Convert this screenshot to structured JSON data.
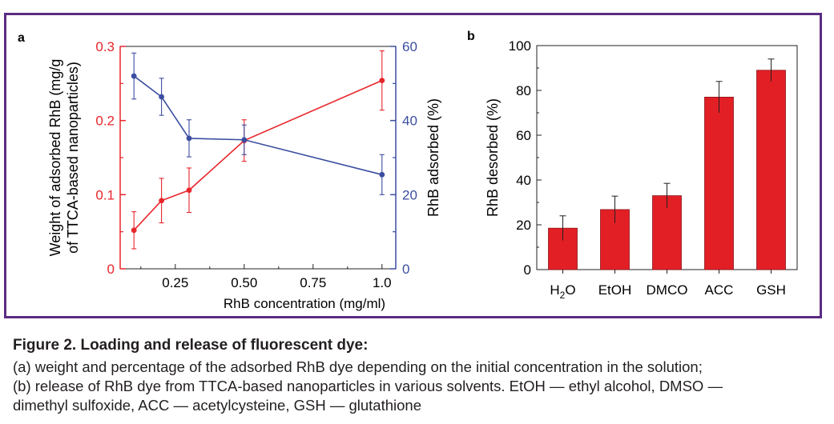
{
  "colors": {
    "frame": "#5b2c83",
    "red": "#e8262b",
    "blue": "#3b4ea1",
    "bar": "#e31f26",
    "text": "#231f20"
  },
  "caption": {
    "title": "Figure 2. Loading and release of fluorescent dye:",
    "line1": "(a) weight and percentage of the adsorbed RhB dye depending on the initial concentration in the solution;",
    "line2": "(b) release of RhB dye from TTCA-based nanoparticles in various solvents. EtOH — ethyl alcohol, DMSO —",
    "line3": "dimethyl sulfoxide, ACC — acetylcysteine, GSH — glutathione"
  },
  "chart_data": [
    {
      "panel": "a",
      "type": "line",
      "xlabel": "RhB concentration (mg/ml)",
      "ylabel_left_line1": "Weight of adsorbed RhB (mg/g",
      "ylabel_left_line2": "of TTCA-based nanoparticles)",
      "ylabel_right": "RhB adsorbed (%)",
      "xlim": [
        0.05,
        1.05
      ],
      "xticks": [
        "0.25",
        "0.50",
        "0.75",
        "1.0"
      ],
      "ylim_left": [
        0,
        0.3
      ],
      "yticks_left": [
        "0",
        "0.1",
        "0.2",
        "0.3"
      ],
      "ylim_right": [
        0,
        60
      ],
      "yticks_right": [
        "0",
        "20",
        "40",
        "60"
      ],
      "series": [
        {
          "axis": "left",
          "color": "#e8262b",
          "x": [
            0.1,
            0.2,
            0.3,
            0.5,
            1.0
          ],
          "y": [
            0.052,
            0.092,
            0.106,
            0.173,
            0.254
          ],
          "err": [
            0.025,
            0.03,
            0.03,
            0.028,
            0.04
          ]
        },
        {
          "axis": "right",
          "color": "#3b4ea1",
          "x": [
            0.1,
            0.2,
            0.3,
            0.5,
            1.0
          ],
          "y": [
            52,
            46.4,
            35.2,
            34.8,
            25.4
          ],
          "err": [
            6.2,
            5,
            5,
            4,
            5.4
          ]
        }
      ]
    },
    {
      "panel": "b",
      "type": "bar",
      "ylabel": "RhB desorbed (%)",
      "ylim": [
        0,
        100
      ],
      "yticks": [
        "0",
        "20",
        "40",
        "60",
        "80",
        "100"
      ],
      "categories": [
        "H2O",
        "EtOH",
        "DMCO",
        "ACC",
        "GSH"
      ],
      "values": [
        18.5,
        26.8,
        33,
        77,
        89
      ],
      "err": [
        5.5,
        6,
        5.5,
        7,
        5
      ]
    }
  ]
}
